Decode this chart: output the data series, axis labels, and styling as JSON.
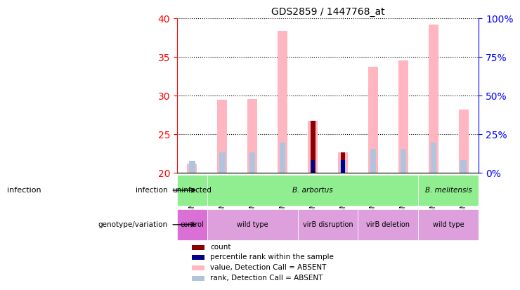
{
  "title": "GDS2859 / 1447768_at",
  "samples": [
    "GSM155205",
    "GSM155248",
    "GSM155249",
    "GSM155251",
    "GSM155252",
    "GSM155253",
    "GSM155254",
    "GSM155255",
    "GSM155256",
    "GSM155257"
  ],
  "ylim_left": [
    20,
    40
  ],
  "ylim_right": [
    0,
    100
  ],
  "yticks_left": [
    20,
    25,
    30,
    35,
    40
  ],
  "yticks_right": [
    0,
    25,
    50,
    75,
    100
  ],
  "pink_bar_values": [
    21.2,
    29.5,
    29.6,
    38.4,
    26.8,
    22.7,
    33.8,
    34.6,
    39.2,
    28.2
  ],
  "pink_bar_base": 20,
  "blue_bar_values": [
    21.6,
    22.7,
    22.7,
    23.9,
    21.7,
    21.7,
    23.1,
    23.1,
    23.9,
    21.7
  ],
  "blue_bar_base": 20,
  "red_bar_values": [
    20.0,
    20.0,
    20.0,
    20.0,
    26.8,
    22.7,
    20.0,
    20.0,
    20.0,
    20.0
  ],
  "red_bar_base": 20,
  "dark_blue_bar_values": [
    20.0,
    20.0,
    20.0,
    20.0,
    21.7,
    21.7,
    20.0,
    20.0,
    20.0,
    20.0
  ],
  "dark_blue_bar_base": 20,
  "infection_groups": [
    {
      "label": "uninfected",
      "samples": [
        0,
        0
      ],
      "color": "#90EE90"
    },
    {
      "label": "B. arbortus",
      "samples": [
        1,
        7
      ],
      "color": "#90EE90"
    },
    {
      "label": "B. melitensis",
      "samples": [
        8,
        9
      ],
      "color": "#90EE90"
    }
  ],
  "genotype_groups": [
    {
      "label": "control",
      "samples": [
        0,
        0
      ],
      "color": "#DA70D6"
    },
    {
      "label": "wild type",
      "samples": [
        1,
        3
      ],
      "color": "#DDA0DD"
    },
    {
      "label": "virB disruption",
      "samples": [
        4,
        5
      ],
      "color": "#DDA0DD"
    },
    {
      "label": "virB deletion",
      "samples": [
        6,
        7
      ],
      "color": "#DDA0DD"
    },
    {
      "label": "wild type",
      "samples": [
        8,
        9
      ],
      "color": "#DDA0DD"
    }
  ],
  "legend_items": [
    {
      "label": "count",
      "color": "#8B0000"
    },
    {
      "label": "percentile rank within the sample",
      "color": "#00008B"
    },
    {
      "label": "value, Detection Call = ABSENT",
      "color": "#FFB6C1"
    },
    {
      "label": "rank, Detection Call = ABSENT",
      "color": "#B0C4DE"
    }
  ],
  "left_axis_color": "red",
  "right_axis_color": "blue",
  "bar_width": 0.4,
  "background_color": "#f0f0f0"
}
